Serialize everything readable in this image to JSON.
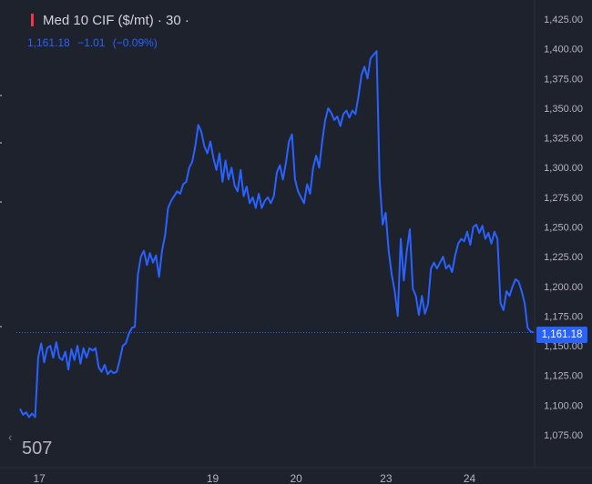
{
  "legend": {
    "symbol": "Med 10 CIF ($/mt)",
    "separator1": "·",
    "interval": "30",
    "separator2": "·",
    "marker_color": "#f23645"
  },
  "ohlc": {
    "last": "1,161.18",
    "change": "−1.01",
    "change_pct": "(−0.09%)",
    "color": "#2962ff"
  },
  "counter": "507",
  "nav_left_glyph": "‹",
  "price_tag": "1,161.18",
  "chart_data": {
    "type": "line",
    "title": "Med 10 CIF ($/mt)",
    "xlabel": "",
    "ylabel": "",
    "x_ticks": [
      "17",
      "19",
      "20",
      "23",
      "24"
    ],
    "y_ticks": [
      "1,075.00",
      "1,100.00",
      "1,125.00",
      "1,150.00",
      "1,175.00",
      "1,200.00",
      "1,225.00",
      "1,250.00",
      "1,275.00",
      "1,300.00",
      "1,325.00",
      "1,350.00",
      "1,375.00",
      "1,400.00",
      "1,425.00"
    ],
    "ylim": [
      1067,
      1431
    ],
    "grid": false,
    "last_value": 1161.18,
    "line_color": "#2962ff",
    "tick_positions_index": {
      "17": 1.5,
      "19": 15,
      "20": 21.5,
      "23": 28.5,
      "24": 35
    },
    "y": [
      1097,
      1092,
      1094,
      1090,
      1093,
      1090,
      1140,
      1152,
      1136,
      1148,
      1150,
      1140,
      1153,
      1140,
      1138,
      1145,
      1130,
      1147,
      1138,
      1150,
      1135,
      1148,
      1140,
      1148,
      1146,
      1148,
      1132,
      1128,
      1134,
      1126,
      1129,
      1127,
      1128,
      1138,
      1150,
      1152,
      1160,
      1165,
      1166,
      1210,
      1225,
      1230,
      1218,
      1228,
      1220,
      1226,
      1208,
      1230,
      1243,
      1266,
      1272,
      1276,
      1280,
      1278,
      1286,
      1288,
      1300,
      1305,
      1318,
      1336,
      1330,
      1318,
      1312,
      1322,
      1308,
      1298,
      1312,
      1288,
      1306,
      1290,
      1300,
      1285,
      1280,
      1298,
      1276,
      1284,
      1270,
      1275,
      1266,
      1278,
      1266,
      1272,
      1275,
      1270,
      1276,
      1296,
      1302,
      1290,
      1304,
      1322,
      1328,
      1290,
      1280,
      1275,
      1270,
      1286,
      1278,
      1300,
      1310,
      1300,
      1322,
      1340,
      1350,
      1346,
      1340,
      1343,
      1335,
      1345,
      1348,
      1342,
      1348,
      1345,
      1360,
      1378,
      1385,
      1375,
      1392,
      1395,
      1398,
      1290,
      1252,
      1262,
      1230,
      1210,
      1196,
      1175,
      1240,
      1205,
      1230,
      1248,
      1198,
      1192,
      1176,
      1192,
      1177,
      1185,
      1215,
      1220,
      1215,
      1220,
      1225,
      1215,
      1218,
      1212,
      1226,
      1236,
      1240,
      1238,
      1246,
      1235,
      1250,
      1252,
      1245,
      1251,
      1240,
      1245,
      1236,
      1246,
      1240,
      1186,
      1180,
      1196,
      1192,
      1200,
      1206,
      1204,
      1196,
      1186,
      1165,
      1162,
      1161.18
    ]
  }
}
